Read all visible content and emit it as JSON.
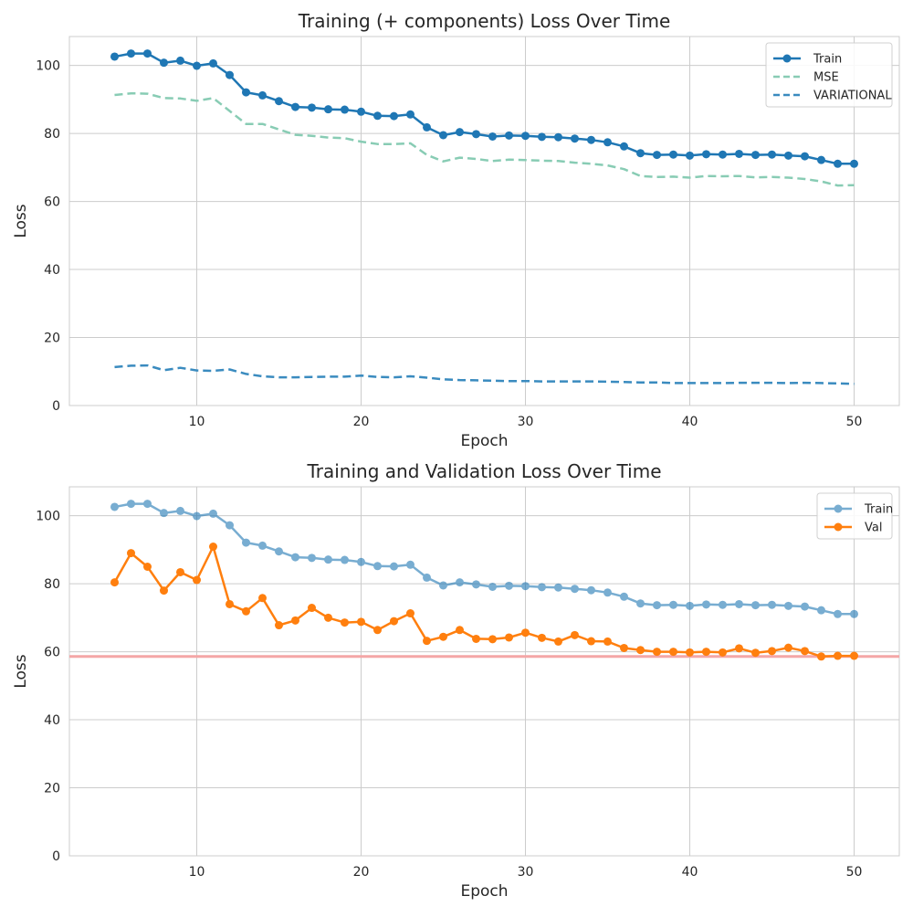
{
  "chart_data": [
    {
      "type": "line",
      "title": "Training (+ components) Loss Over Time",
      "xlabel": "Epoch",
      "ylabel": "Loss",
      "xlim": [
        2.25,
        52.75
      ],
      "ylim": [
        0,
        108.5
      ],
      "xticks": [
        10,
        20,
        30,
        40,
        50
      ],
      "yticks": [
        0,
        20,
        40,
        60,
        80,
        100
      ],
      "grid": true,
      "legend_position": "top-right",
      "x": [
        5,
        6,
        7,
        8,
        9,
        10,
        11,
        12,
        13,
        14,
        15,
        16,
        17,
        18,
        19,
        20,
        21,
        22,
        23,
        24,
        25,
        26,
        27,
        28,
        29,
        30,
        31,
        32,
        33,
        34,
        35,
        36,
        37,
        38,
        39,
        40,
        41,
        42,
        43,
        44,
        45,
        46,
        47,
        48,
        49,
        50
      ],
      "series": [
        {
          "name": "Train",
          "color": "#1f77b4",
          "style": "solid-markers",
          "values": [
            102.6,
            103.5,
            103.5,
            100.8,
            101.4,
            99.9,
            100.6,
            97.2,
            92.1,
            91.2,
            89.5,
            87.8,
            87.6,
            87.1,
            87.0,
            86.4,
            85.2,
            85.1,
            85.6,
            81.8,
            79.5,
            80.4,
            79.8,
            79.1,
            79.4,
            79.3,
            79.0,
            78.9,
            78.5,
            78.1,
            77.4,
            76.2,
            74.2,
            73.7,
            73.8,
            73.5,
            73.9,
            73.8,
            74.0,
            73.7,
            73.8,
            73.5,
            73.3,
            72.2,
            71.1,
            71.1
          ]
        },
        {
          "name": "MSE",
          "color": "#88ccb4",
          "style": "dashed",
          "values": [
            91.3,
            91.8,
            91.7,
            90.4,
            90.3,
            89.6,
            90.4,
            86.6,
            82.8,
            82.8,
            81.2,
            79.6,
            79.3,
            78.8,
            78.6,
            77.6,
            76.9,
            76.9,
            77.1,
            73.7,
            71.8,
            72.9,
            72.5,
            71.9,
            72.3,
            72.2,
            72.0,
            71.9,
            71.4,
            71.1,
            70.6,
            69.5,
            67.5,
            67.2,
            67.3,
            67.0,
            67.5,
            67.4,
            67.5,
            67.1,
            67.2,
            67.0,
            66.6,
            65.9,
            64.7,
            64.8
          ]
        },
        {
          "name": "VARIATIONAL",
          "color": "#3a8bbf",
          "style": "dashed",
          "values": [
            11.3,
            11.7,
            11.8,
            10.4,
            11.1,
            10.3,
            10.2,
            10.6,
            9.3,
            8.6,
            8.3,
            8.3,
            8.4,
            8.5,
            8.5,
            8.8,
            8.4,
            8.3,
            8.6,
            8.2,
            7.7,
            7.5,
            7.4,
            7.3,
            7.2,
            7.2,
            7.1,
            7.1,
            7.1,
            7.1,
            7.0,
            6.9,
            6.8,
            6.8,
            6.6,
            6.6,
            6.6,
            6.6,
            6.7,
            6.7,
            6.7,
            6.6,
            6.7,
            6.6,
            6.5,
            6.4
          ]
        }
      ]
    },
    {
      "type": "line",
      "title": "Training and Validation Loss Over Time",
      "xlabel": "Epoch",
      "ylabel": "Loss",
      "xlim": [
        2.25,
        52.75
      ],
      "ylim": [
        0,
        108.5
      ],
      "xticks": [
        10,
        20,
        30,
        40,
        50
      ],
      "yticks": [
        0,
        20,
        40,
        60,
        80,
        100
      ],
      "grid": true,
      "legend_position": "top-right",
      "hline": {
        "y": 58.6,
        "color": "#f4a6a6"
      },
      "x": [
        5,
        6,
        7,
        8,
        9,
        10,
        11,
        12,
        13,
        14,
        15,
        16,
        17,
        18,
        19,
        20,
        21,
        22,
        23,
        24,
        25,
        26,
        27,
        28,
        29,
        30,
        31,
        32,
        33,
        34,
        35,
        36,
        37,
        38,
        39,
        40,
        41,
        42,
        43,
        44,
        45,
        46,
        47,
        48,
        49,
        50
      ],
      "series": [
        {
          "name": "Train",
          "color": "#1f77b4",
          "style": "faded-markers",
          "values": [
            102.6,
            103.5,
            103.5,
            100.8,
            101.4,
            99.9,
            100.6,
            97.2,
            92.1,
            91.2,
            89.5,
            87.8,
            87.6,
            87.1,
            87.0,
            86.4,
            85.2,
            85.1,
            85.6,
            81.8,
            79.5,
            80.4,
            79.8,
            79.1,
            79.4,
            79.3,
            79.0,
            78.9,
            78.5,
            78.1,
            77.4,
            76.2,
            74.2,
            73.7,
            73.8,
            73.5,
            73.9,
            73.8,
            74.0,
            73.7,
            73.8,
            73.5,
            73.3,
            72.2,
            71.1,
            71.1
          ]
        },
        {
          "name": "Val",
          "color": "#ff7f0e",
          "style": "solid-markers",
          "values": [
            80.4,
            89.0,
            85.0,
            78.0,
            83.4,
            81.1,
            90.9,
            74.0,
            71.9,
            75.8,
            67.8,
            69.2,
            72.9,
            70.0,
            68.6,
            68.8,
            66.4,
            69.0,
            71.3,
            63.2,
            64.4,
            66.4,
            63.8,
            63.7,
            64.2,
            65.6,
            64.1,
            63.0,
            64.9,
            63.1,
            63.0,
            61.1,
            60.5,
            60.0,
            60.0,
            59.8,
            60.0,
            59.8,
            61.0,
            59.7,
            60.2,
            61.2,
            60.2,
            58.6,
            58.8,
            58.8
          ]
        }
      ]
    }
  ]
}
